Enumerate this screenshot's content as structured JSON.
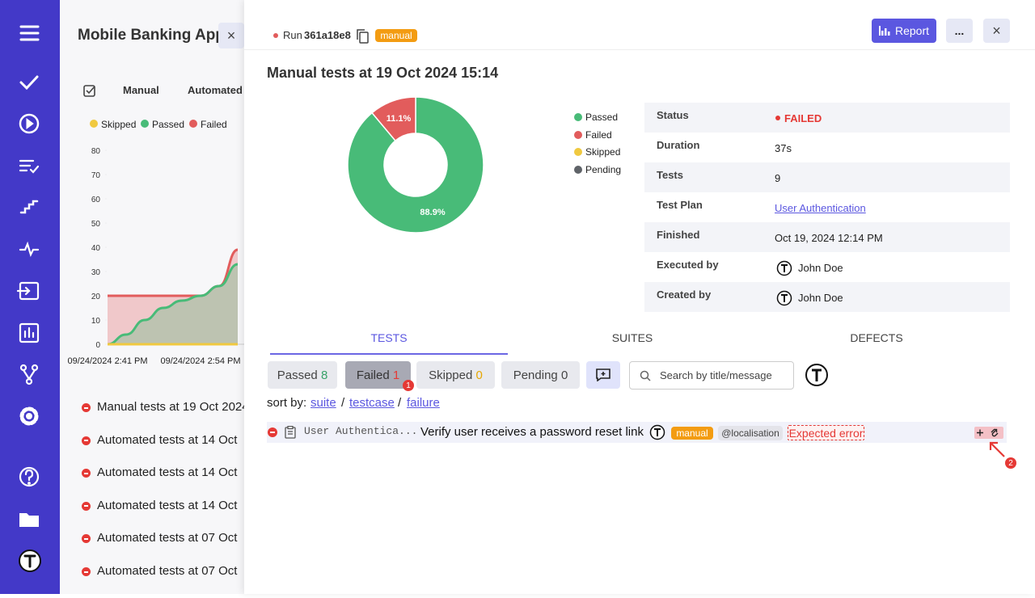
{
  "sidebar": {
    "project_title": "Mobile Banking App",
    "tabs": [
      "Manual",
      "Automated"
    ],
    "runs": [
      "Manual tests at 19 Oct 2024",
      "Automated tests at 14 Oct",
      "Automated tests at 14 Oct",
      "Automated tests at 14 Oct",
      "Automated tests at 07 Oct",
      "Automated tests at 07 Oct"
    ]
  },
  "header": {
    "run_label": "Run",
    "run_id": "361a18e8",
    "run_type": "manual",
    "report_button": "Report",
    "more_button": "..."
  },
  "title": "Manual tests at 19 Oct 2024 15:14",
  "details": [
    [
      "Status",
      "FAILED"
    ],
    [
      "Duration",
      "37s"
    ],
    [
      "Tests",
      "9"
    ],
    [
      "Test Plan",
      "User Authentication"
    ],
    [
      "Finished",
      "Oct 19, 2024 12:14 PM"
    ],
    [
      "Executed by",
      "John Doe"
    ],
    [
      "Created by",
      "John Doe"
    ]
  ],
  "tabs": [
    "TESTS",
    "SUITES",
    "DEFECTS"
  ],
  "filters": [
    {
      "label": "Passed",
      "count": 8
    },
    {
      "label": "Failed",
      "count": 1,
      "badge": 1
    },
    {
      "label": "Skipped",
      "count": 0
    },
    {
      "label": "Pending",
      "count": 0
    }
  ],
  "search_placeholder": "Search by title/message",
  "sort": {
    "label": "sort by:",
    "options": [
      "suite",
      "testcase",
      "failure"
    ]
  },
  "tests": [
    {
      "suite": "User Authentica...",
      "title": "Verify user receives a password reset link",
      "tags": [
        "manual",
        "@localisation"
      ],
      "message": "Expected error",
      "badge": 2
    }
  ],
  "chart_data": [
    {
      "type": "line",
      "categories": [
        "09/24/2024 2:41 PM",
        null,
        null,
        null,
        null,
        "09/24/2024 2:54 PM",
        null,
        null
      ],
      "series": [
        {
          "name": "Skipped",
          "color": "#f0c940",
          "values": [
            0,
            0,
            0,
            0,
            0,
            0,
            0,
            0
          ]
        },
        {
          "name": "Passed",
          "color": "#48bb78",
          "values": [
            0,
            4,
            10,
            15,
            18,
            20,
            24,
            33
          ]
        },
        {
          "name": "Failed",
          "color": "#e25c5c",
          "values": [
            20,
            20,
            20,
            20,
            20,
            20,
            24,
            39
          ]
        }
      ],
      "ylim": [
        0,
        80
      ],
      "yticks": [
        0,
        10,
        20,
        30,
        40,
        50,
        60,
        70,
        80
      ]
    },
    {
      "type": "pie",
      "donut": true,
      "categories": [
        "Passed",
        "Failed",
        "Skipped",
        "Pending"
      ],
      "values": [
        88.9,
        11.1,
        0,
        0
      ],
      "value_labels": [
        "88.9%",
        "11.1%",
        null,
        null
      ],
      "colors": [
        "#48bb78",
        "#e25c5c",
        "#f0c940",
        "#5f6368"
      ]
    }
  ]
}
